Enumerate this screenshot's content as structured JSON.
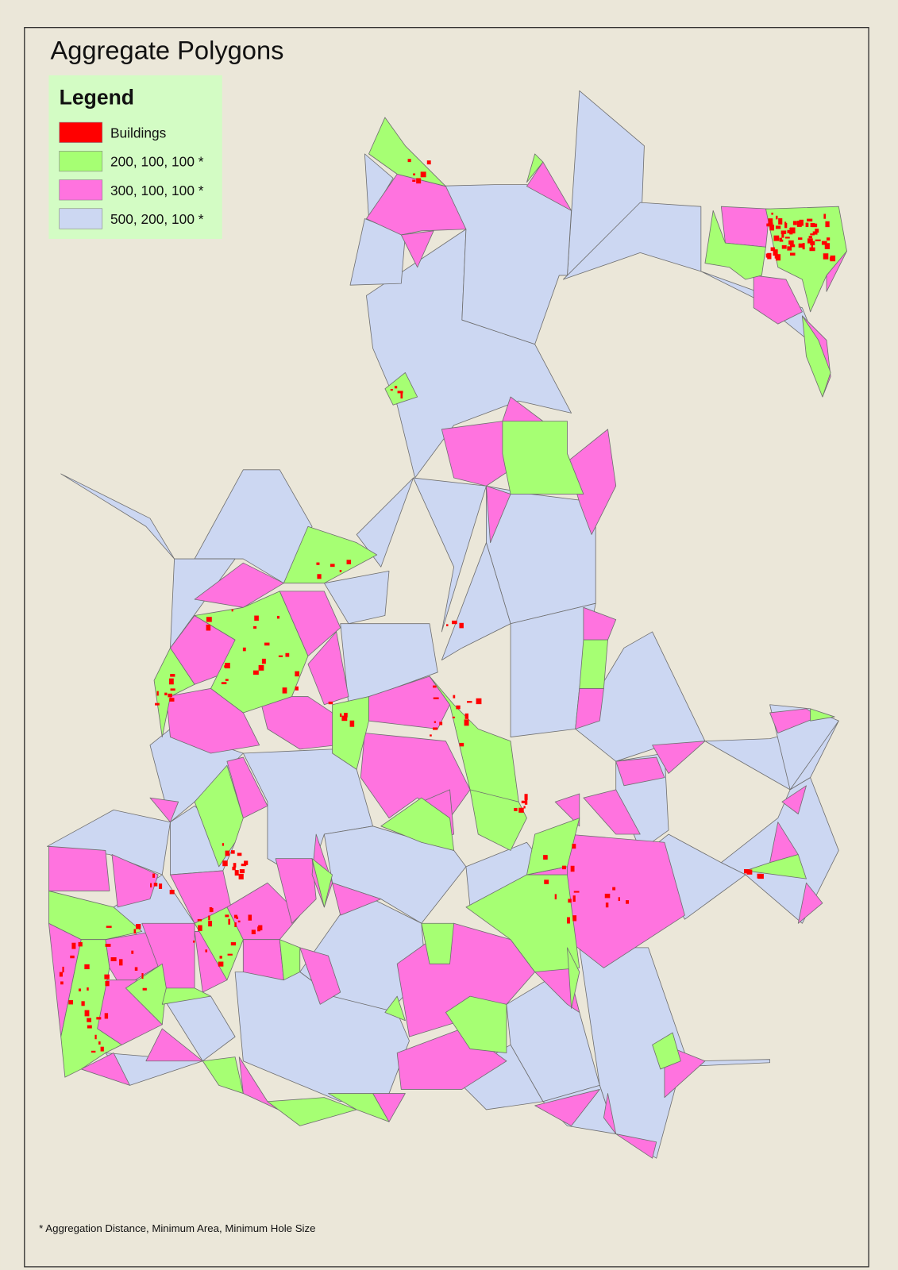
{
  "header": {
    "title": "Aggregate Polygons"
  },
  "legend": {
    "title": "Legend",
    "items": [
      {
        "label": "Buildings",
        "color": "#ff0000"
      },
      {
        "label": "200, 100, 100 *",
        "color": "#a6ff73"
      },
      {
        "label": "300, 100, 100 *",
        "color": "#ff73df"
      },
      {
        "label": "500, 200, 100 *",
        "color": "#ccd7f2"
      }
    ]
  },
  "footnote": "* Aggregation Distance, Minimum Area, Minimum Hole Size"
}
